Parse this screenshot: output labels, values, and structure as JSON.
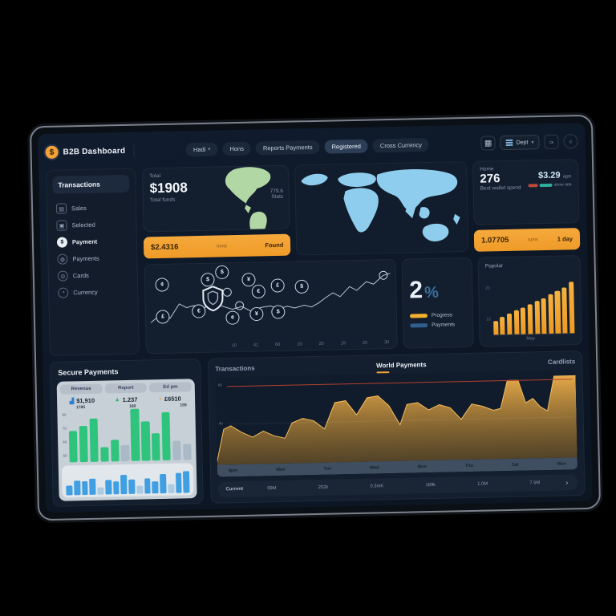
{
  "colors": {
    "accent_orange": "#f2a237",
    "map_green": "#b9e2ab",
    "map_blue": "#8fcdee",
    "bar_green": "#2fc47c",
    "bar_blue": "#3f9fe2",
    "threshold_red": "#b5402f",
    "progress_red": "#c2473a",
    "progress_teal": "#2fae9b",
    "legend_yellow": "#f2b02e",
    "legend_blue": "#2f5f8f"
  },
  "topbar": {
    "logo_symbol": "$",
    "title": "B2B Dashboard",
    "nav": [
      {
        "label": "Hadi"
      },
      {
        "label": "Hons"
      },
      {
        "label": "Reports Payments"
      },
      {
        "label": "Registered"
      },
      {
        "label": "Cross Currency"
      }
    ],
    "dept_label": "Dept",
    "caret": "▾"
  },
  "sidebar": {
    "header": "Transactions",
    "items": [
      {
        "label": "Sales",
        "icon": "▤"
      },
      {
        "label": "Selected",
        "icon": "▣"
      },
      {
        "label": "Payment",
        "icon": "$"
      },
      {
        "label": "Payments",
        "icon": "◍"
      },
      {
        "label": "Cards",
        "icon": "◎"
      },
      {
        "label": "Currency",
        "icon": "◔"
      }
    ]
  },
  "balance": {
    "label": "Total",
    "value": "$1908",
    "sub": "Total funds",
    "note_value": "779.6",
    "note_label": "Stats"
  },
  "banner1": {
    "value": "$2.4316",
    "note": "trend",
    "action": "Found"
  },
  "stat": {
    "label": "Home",
    "value": "276",
    "sub": "Best wallet spend",
    "amount": "$3.29",
    "amount_suffix": "agm",
    "progress_note": "show rate"
  },
  "banner2": {
    "value": "1.07705",
    "note": "turns",
    "action": "1 day"
  },
  "percent_card": {
    "value": "2",
    "unit": "%",
    "legend": [
      {
        "label": "Progress",
        "color": "#f2b02e"
      },
      {
        "label": "Payments",
        "color": "#2f5f8f"
      }
    ]
  },
  "popular": {
    "title": "Popular",
    "xlabel": "May",
    "yticks": [
      "20",
      "10"
    ]
  },
  "secure": {
    "title": "Secure Payments",
    "columns": [
      {
        "label": "Revenue",
        "value": "$1,910",
        "sub": "1785",
        "icon": "▟",
        "color": "#2f7fd0"
      },
      {
        "label": "Report",
        "value": "1.237",
        "sub": "189",
        "icon": "▲",
        "color": "#2fb36b"
      },
      {
        "label": "Ed pm",
        "value": "£6510",
        "sub": "199",
        "icon": "◗",
        "color": "#ef9a2e"
      }
    ],
    "yticks": [
      "90",
      "70",
      "40",
      "60"
    ]
  },
  "world_panel": {
    "tabs": [
      {
        "label": "Transactions"
      },
      {
        "label": "World Payments"
      },
      {
        "label": "Cardlists"
      }
    ],
    "footer_label": "Current",
    "footer_values": [
      "99M",
      "202k",
      "0.3mK",
      "189k",
      "1.0M",
      "7.5M"
    ],
    "chevron": "›"
  },
  "chart_data": {
    "coin_flow": {
      "type": "line",
      "ticks": [
        "10",
        "41",
        "60",
        "10",
        "20",
        "19",
        "20",
        "30"
      ],
      "points": [
        [
          0,
          80
        ],
        [
          4,
          68
        ],
        [
          8,
          74
        ],
        [
          12,
          52
        ],
        [
          15,
          58
        ],
        [
          18,
          55
        ],
        [
          22,
          60
        ],
        [
          26,
          50
        ],
        [
          30,
          57
        ],
        [
          34,
          62
        ],
        [
          38,
          58
        ],
        [
          42,
          66
        ],
        [
          46,
          60
        ],
        [
          50,
          58
        ],
        [
          53,
          63
        ],
        [
          57,
          59
        ],
        [
          60,
          62
        ],
        [
          64,
          58
        ],
        [
          67,
          61
        ],
        [
          70,
          55
        ],
        [
          73,
          47
        ],
        [
          76,
          40
        ],
        [
          79,
          46
        ],
        [
          83,
          31
        ],
        [
          86,
          37
        ],
        [
          90,
          24
        ],
        [
          93,
          28
        ],
        [
          97,
          15
        ],
        [
          100,
          12
        ]
      ],
      "rings": [
        [
          32,
          36
        ],
        [
          37,
          57
        ],
        [
          97,
          15
        ]
      ],
      "coins": [
        {
          "x": 5,
          "y": 22,
          "g": "¢"
        },
        {
          "x": 24,
          "y": 16,
          "g": "$"
        },
        {
          "x": 30,
          "y": 6,
          "g": "$"
        },
        {
          "x": 41,
          "y": 18,
          "g": "¥"
        },
        {
          "x": 45,
          "y": 36,
          "g": "€"
        },
        {
          "x": 53,
          "y": 28,
          "g": "£"
        },
        {
          "x": 63,
          "y": 30,
          "g": "$"
        },
        {
          "x": 5,
          "y": 72,
          "g": "£"
        },
        {
          "x": 20,
          "y": 64,
          "g": "€"
        },
        {
          "x": 34,
          "y": 76,
          "g": "¢"
        },
        {
          "x": 44,
          "y": 71,
          "g": "¥"
        },
        {
          "x": 53,
          "y": 68,
          "g": "$"
        }
      ]
    },
    "popular_bars": {
      "type": "bar",
      "values": [
        22,
        28,
        33,
        38,
        42,
        47,
        52,
        57,
        63,
        68,
        73,
        82
      ]
    },
    "secure_green": {
      "type": "bar",
      "values": [
        58,
        66,
        80,
        26,
        40,
        30,
        95,
        72,
        50,
        88,
        36,
        30
      ],
      "dim": [
        5,
        10,
        11
      ]
    },
    "secure_blue": {
      "type": "bar",
      "values": [
        34,
        52,
        50,
        58,
        26,
        54,
        46,
        72,
        52,
        30,
        56,
        44,
        70,
        32,
        74,
        80
      ],
      "dim": [
        4,
        9,
        13
      ]
    },
    "world_area": {
      "type": "area",
      "points": [
        [
          0,
          96
        ],
        [
          2,
          58
        ],
        [
          4,
          54
        ],
        [
          7,
          62
        ],
        [
          10,
          68
        ],
        [
          13,
          61
        ],
        [
          16,
          67
        ],
        [
          19,
          70
        ],
        [
          21,
          52
        ],
        [
          24,
          47
        ],
        [
          27,
          50
        ],
        [
          30,
          60
        ],
        [
          33,
          29
        ],
        [
          36,
          27
        ],
        [
          39,
          44
        ],
        [
          42,
          24
        ],
        [
          45,
          22
        ],
        [
          48,
          34
        ],
        [
          51,
          57
        ],
        [
          53,
          33
        ],
        [
          56,
          31
        ],
        [
          59,
          40
        ],
        [
          62,
          34
        ],
        [
          65,
          38
        ],
        [
          68,
          52
        ],
        [
          71,
          34
        ],
        [
          74,
          37
        ],
        [
          77,
          42
        ],
        [
          79,
          40
        ],
        [
          81,
          7
        ],
        [
          84,
          7
        ],
        [
          86,
          34
        ],
        [
          88,
          29
        ],
        [
          90,
          39
        ],
        [
          92,
          44
        ],
        [
          94,
          3
        ],
        [
          100,
          3
        ]
      ],
      "threshold_label": "60",
      "grid_label": "40",
      "xticks": [
        "8pm",
        "Mon",
        "Tue",
        "Wed",
        "Mon",
        "Thu",
        "Sat",
        "Mon"
      ]
    }
  }
}
